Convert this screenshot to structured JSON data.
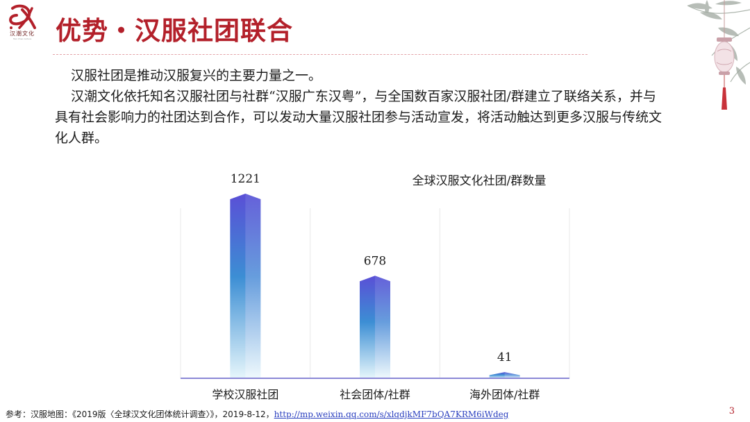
{
  "logo": {
    "name": "汉潮文化",
    "subtitle": "Han Chao Culture"
  },
  "title": "优势・汉服社团联合",
  "paragraphs": [
    "汉服社团是推动汉服复兴的主要力量之一。",
    "汉潮文化依托知名汉服社团与社群“汉服广东汉粤”，与全国数百家汉服社团/群建立了联络关系，并与具有社会影响力的社团达到合作，可以发动大量汉服社团参与活动宣发，将活动触达到更多汉服与传统文化人群。"
  ],
  "chart_data": {
    "type": "bar",
    "title": "全球汉服文化社团/群数量",
    "categories": [
      "学校汉服社团",
      "社会团体/社群",
      "海外团体/社群"
    ],
    "values": [
      1221,
      678,
      41
    ],
    "ylim": [
      0,
      1400
    ],
    "grid": true,
    "colors": {
      "top": "#5a4fd6",
      "mid": "#3c8ed4",
      "bottom": "#e6f6fb",
      "axis": "#8a87d6"
    }
  },
  "reference": {
    "text": "参考：汉服地图：《2019版〈全球汉文化团体统计调查〉》，2019-8-12，",
    "link": "http://mp.weixin.qq.com/s/xlqdjkMF7bQA7KRM6iWdeg"
  },
  "page_number": "3",
  "colors": {
    "accent": "#b3202a"
  }
}
